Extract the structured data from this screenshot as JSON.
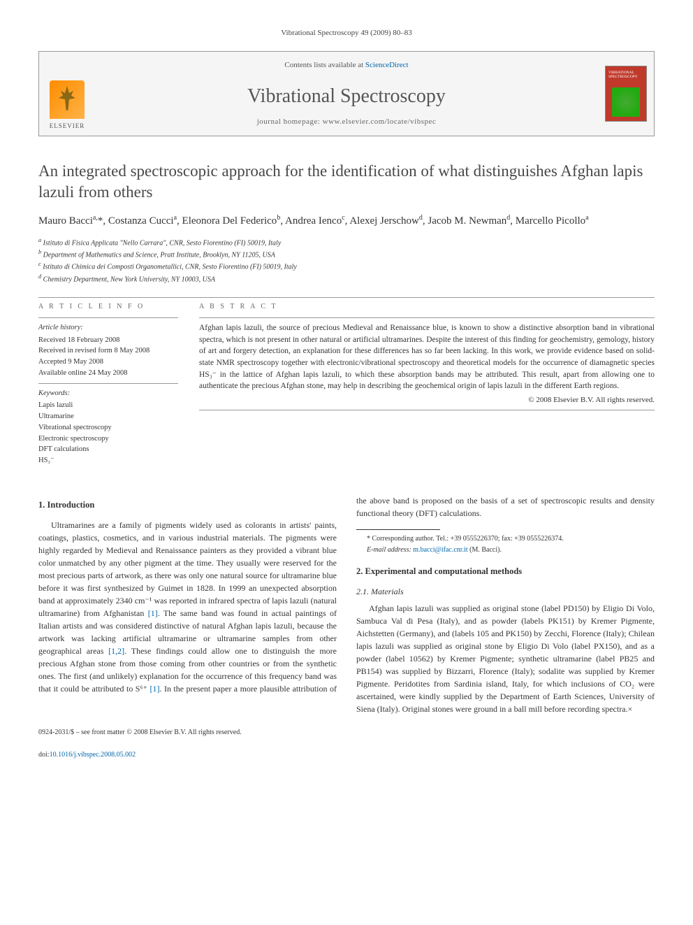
{
  "header": {
    "citation": "Vibrational Spectroscopy 49 (2009) 80–83",
    "contents_prefix": "Contents lists available at ",
    "contents_link": "ScienceDirect",
    "journal_name": "Vibrational Spectroscopy",
    "homepage_label": "journal homepage: www.elsevier.com/locate/vibspec",
    "publisher": "ELSEVIER",
    "cover_label": "VIBRATIONAL SPECTROSCOPY"
  },
  "article": {
    "title": "An integrated spectroscopic approach for the identification of what distinguishes Afghan lapis lazuli from others",
    "authors_html": "Mauro Bacci<sup>a,</sup>*, Costanza Cucci<sup>a</sup>, Eleonora Del Federico<sup>b</sup>, Andrea Ienco<sup>c</sup>, Alexej Jerschow<sup>d</sup>, Jacob M. Newman<sup>d</sup>, Marcello Picollo<sup>a</sup>",
    "affiliations": [
      "a Istituto di Fisica Applicata \"Nello Carrara\", CNR, Sesto Fiorentino (FI) 50019, Italy",
      "b Department of Mathematics and Science, Pratt Institute, Brooklyn, NY 11205, USA",
      "c Istituto di Chimica dei Composti Organometallici, CNR, Sesto Fiorentino (FI) 50019, Italy",
      "d Chemistry Department, New York University, NY 10003, USA"
    ]
  },
  "info": {
    "label": "A R T I C L E   I N F O",
    "history_head": "Article history:",
    "history": [
      "Received 18 February 2008",
      "Received in revised form 8 May 2008",
      "Accepted 9 May 2008",
      "Available online 24 May 2008"
    ],
    "keywords_head": "Keywords:",
    "keywords": [
      "Lapis lazuli",
      "Ultramarine",
      "Vibrational spectroscopy",
      "Electronic spectroscopy",
      "DFT calculations",
      "HS₃⁻"
    ]
  },
  "abstract": {
    "label": "A B S T R A C T",
    "text": "Afghan lapis lazuli, the source of precious Medieval and Renaissance blue, is known to show a distinctive absorption band in vibrational spectra, which is not present in other natural or artificial ultramarines. Despite the interest of this finding for geochemistry, gemology, history of art and forgery detection, an explanation for these differences has so far been lacking. In this work, we provide evidence based on solid-state NMR spectroscopy together with electronic/vibrational spectroscopy and theoretical models for the occurrence of diamagnetic species HS₃⁻ in the lattice of Afghan lapis lazuli, to which these absorption bands may be attributed. This result, apart from allowing one to authenticate the precious Afghan stone, may help in describing the geochemical origin of lapis lazuli in the different Earth regions.",
    "copyright": "© 2008 Elsevier B.V. All rights reserved."
  },
  "body": {
    "sec1_head": "1. Introduction",
    "sec1_p1": "Ultramarines are a family of pigments widely used as colorants in artists' paints, coatings, plastics, cosmetics, and in various industrial materials. The pigments were highly regarded by Medieval and Renaissance painters as they provided a vibrant blue color unmatched by any other pigment at the time. They usually were reserved for the most precious parts of artwork, as there was only one natural source for ultramarine blue before it was first synthesized by Guimet in 1828. In 1999 an unexpected absorption band at approximately 2340 cm⁻¹ was reported in infrared spectra of lapis lazuli (natural ultramarine) from Afghanistan [1]. The same band was found in actual paintings of Italian artists and was considered distinctive of natural Afghan lapis lazuli, because the artwork was lacking artificial ultramarine or ultramarine samples from other geographical areas [1,2]. These findings could allow one to distinguish the more precious Afghan stone from those coming from other countries or from the synthetic ones. The first (and unlikely) explanation for the occurrence of this frequency band was that it could be attributed to S⁶⁺ [1]. In the present paper a more plausible attribution of the above band is proposed on the basis of a set of spectroscopic results and density functional theory (DFT) calculations.",
    "sec2_head": "2. Experimental and computational methods",
    "sec2_1_head": "2.1. Materials",
    "sec2_1_p1": "Afghan lapis lazuli was supplied as original stone (label PD150) by Eligio Di Volo, Sambuca Val di Pesa (Italy), and as powder (labels PK151) by Kremer Pigmente, Aichstetten (Germany), and (labels 105 and PK150) by Zecchi, Florence (Italy); Chilean lapis lazuli was supplied as original stone by Eligio Di Volo (label PX150), and as a powder (label 10562) by Kremer Pigmente; synthetic ultramarine (label PB25 and PB154) was supplied by Bizzarri, Florence (Italy); sodalite was supplied by Kremer Pigmente. Peridotites from Sardinia island, Italy, for which inclusions of CO₂ were ascertained, were kindly supplied by the Department of Earth Sciences, University of Siena (Italy). Original stones were ground in a ball mill before recording spectra.×"
  },
  "footnote": {
    "corr": "* Corresponding author. Tel.: +39 0555226370; fax: +39 0555226374.",
    "email_label": "E-mail address: ",
    "email": "m.bacci@ifac.cnr.it",
    "email_suffix": " (M. Bacci)."
  },
  "footer": {
    "front_matter": "0924-2031/$ – see front matter © 2008 Elsevier B.V. All rights reserved.",
    "doi_label": "doi:",
    "doi": "10.1016/j.vibspec.2008.05.002"
  },
  "colors": {
    "link": "#0066aa",
    "text": "#333333",
    "rule": "#999999",
    "elsevier_orange": "#ff8c00",
    "cover_red": "#c0392b"
  }
}
